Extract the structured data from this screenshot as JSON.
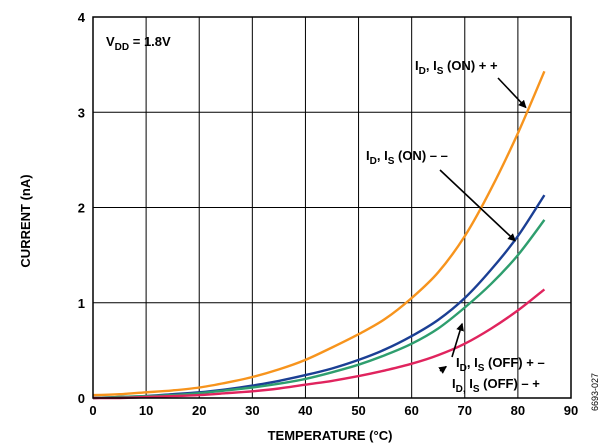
{
  "chart_data": {
    "type": "line",
    "xlabel": "TEMPERATURE (°C)",
    "ylabel": "CURRENT (nA)",
    "xlim": [
      0,
      90
    ],
    "ylim": [
      0,
      4
    ],
    "x_ticks": [
      0,
      10,
      20,
      30,
      40,
      50,
      60,
      70,
      80,
      90
    ],
    "y_ticks": [
      0,
      1,
      2,
      3,
      4
    ],
    "grid": true,
    "condition": {
      "main": "V",
      "sub": "DD",
      "value": " = 1.8V"
    },
    "figure_id": "6693-027",
    "series": [
      {
        "key": "on_pp",
        "color": "#f7941d",
        "x": [
          0,
          5,
          10,
          15,
          20,
          25,
          30,
          35,
          40,
          45,
          50,
          55,
          60,
          65,
          70,
          75,
          80,
          85
        ],
        "values": [
          0.03,
          0.04,
          0.06,
          0.08,
          0.11,
          0.16,
          0.22,
          0.3,
          0.4,
          0.53,
          0.67,
          0.83,
          1.05,
          1.32,
          1.7,
          2.2,
          2.78,
          3.43
        ]
      },
      {
        "key": "on_mm",
        "color": "#1b3f94",
        "x": [
          0,
          5,
          10,
          15,
          20,
          25,
          30,
          35,
          40,
          45,
          50,
          55,
          60,
          65,
          70,
          75,
          80,
          85
        ],
        "values": [
          0.0,
          0.01,
          0.02,
          0.04,
          0.06,
          0.09,
          0.13,
          0.18,
          0.24,
          0.31,
          0.4,
          0.51,
          0.65,
          0.82,
          1.05,
          1.35,
          1.7,
          2.13
        ]
      },
      {
        "key": "off_pm",
        "color": "#2e9e6e",
        "x": [
          0,
          5,
          10,
          15,
          20,
          25,
          30,
          35,
          40,
          45,
          50,
          55,
          60,
          65,
          70,
          75,
          80,
          85
        ],
        "values": [
          0.0,
          0.01,
          0.02,
          0.03,
          0.05,
          0.08,
          0.11,
          0.15,
          0.2,
          0.27,
          0.35,
          0.45,
          0.57,
          0.73,
          0.95,
          1.2,
          1.5,
          1.87
        ]
      },
      {
        "key": "off_mp",
        "color": "#e0245e",
        "x": [
          0,
          5,
          10,
          15,
          20,
          25,
          30,
          35,
          40,
          45,
          50,
          55,
          60,
          65,
          70,
          75,
          80,
          85
        ],
        "values": [
          0.0,
          0.0,
          0.01,
          0.02,
          0.03,
          0.05,
          0.07,
          0.1,
          0.14,
          0.18,
          0.23,
          0.29,
          0.36,
          0.45,
          0.57,
          0.73,
          0.92,
          1.14
        ]
      }
    ],
    "annotations": [
      {
        "key": "on_pp",
        "parts": [
          "I",
          "D",
          ", I",
          "S",
          " (ON) + +"
        ],
        "arrow_to": [
          81.5,
          3.05
        ]
      },
      {
        "key": "on_mm",
        "parts": [
          "I",
          "D",
          ", I",
          "S",
          " (ON) – –"
        ],
        "arrow_to": [
          79.5,
          1.65
        ]
      },
      {
        "key": "off_pm",
        "parts": [
          "I",
          "D",
          ", I",
          "S",
          " (OFF) + –"
        ],
        "arrow_to": [
          69.5,
          0.78
        ]
      },
      {
        "key": "off_mp",
        "parts": [
          "I",
          "D,",
          " I",
          "S",
          " (OFF) – +"
        ],
        "arrow_to": [
          66.5,
          0.33
        ]
      }
    ]
  }
}
